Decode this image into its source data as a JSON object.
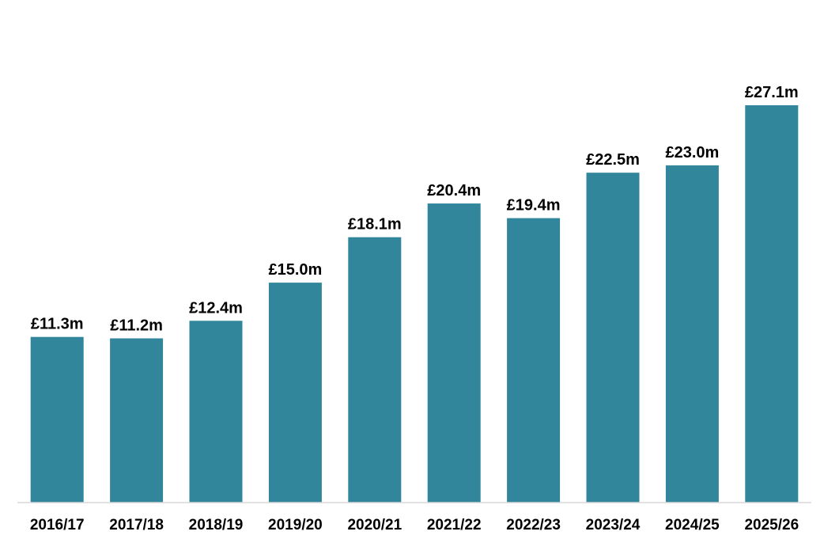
{
  "chart_data": {
    "type": "bar",
    "categories": [
      "2016/17",
      "2017/18",
      "2018/19",
      "2019/20",
      "2020/21",
      "2021/22",
      "2022/23",
      "2023/24",
      "2024/25",
      "2025/26"
    ],
    "values": [
      11.3,
      11.2,
      12.4,
      15.0,
      18.1,
      20.4,
      19.4,
      22.5,
      23.0,
      27.1
    ],
    "data_labels": [
      "£11.3m",
      "£11.2m",
      "£12.4m",
      "£15.0m",
      "£18.1m",
      "£20.4m",
      "£19.4m",
      "£22.5m",
      "£23.0m",
      "£27.1m"
    ],
    "ylim": [
      0,
      30
    ],
    "grid": false,
    "legend": "none",
    "bar_color": "#31869b",
    "axis_color": "#d9d9d9"
  }
}
